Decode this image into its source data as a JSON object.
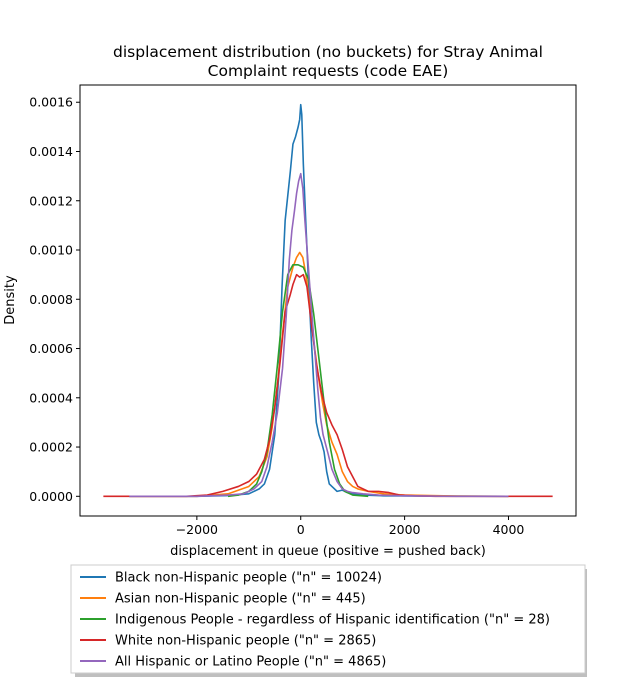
{
  "chart_data": {
    "type": "line",
    "title_lines": [
      "displacement distribution (no buckets)  for Stray Animal",
      "Complaint requests (code EAE)"
    ],
    "xlabel": "displacement in queue (positive = pushed back)",
    "ylabel": "Density",
    "xlim": [
      -4250,
      5300
    ],
    "ylim": [
      -8e-05,
      0.00167
    ],
    "xticks": [
      -2000,
      0,
      2000,
      4000
    ],
    "xtick_labels": [
      "−2000",
      "0",
      "2000",
      "4000"
    ],
    "yticks": [
      0.0,
      0.0002,
      0.0004,
      0.0006,
      0.0008,
      0.001,
      0.0012,
      0.0014,
      0.0016
    ],
    "ytick_labels": [
      "0.0000",
      "0.0002",
      "0.0004",
      "0.0006",
      "0.0008",
      "0.0010",
      "0.0012",
      "0.0014",
      "0.0016"
    ],
    "grid": false,
    "legend_position": "below plot",
    "series": [
      {
        "name": "Black non-Hispanic people (\"n\" = 10024)",
        "color": "#1f77b4",
        "points": [
          [
            -3300,
            0
          ],
          [
            -2000,
            0
          ],
          [
            -1400,
            3e-06
          ],
          [
            -1000,
            1e-05
          ],
          [
            -800,
            3e-05
          ],
          [
            -700,
            5e-05
          ],
          [
            -600,
            0.00011
          ],
          [
            -500,
            0.00025
          ],
          [
            -420,
            0.0005
          ],
          [
            -360,
            0.00085
          ],
          [
            -300,
            0.00112
          ],
          [
            -250,
            0.00122
          ],
          [
            -200,
            0.00132
          ],
          [
            -150,
            0.00143
          ],
          [
            -100,
            0.00146
          ],
          [
            -50,
            0.0015
          ],
          [
            -20,
            0.00153
          ],
          [
            0,
            0.00159
          ],
          [
            20,
            0.00155
          ],
          [
            50,
            0.00135
          ],
          [
            100,
            0.0011
          ],
          [
            150,
            0.00087
          ],
          [
            200,
            0.00065
          ],
          [
            250,
            0.00046
          ],
          [
            300,
            0.0003
          ],
          [
            350,
            0.00025
          ],
          [
            400,
            0.00022
          ],
          [
            450,
            0.00018
          ],
          [
            500,
            0.0001
          ],
          [
            550,
            5e-05
          ],
          [
            600,
            4e-05
          ],
          [
            700,
            2e-05
          ],
          [
            800,
            2.5e-05
          ],
          [
            900,
            1.5e-05
          ],
          [
            1000,
            1e-05
          ],
          [
            1200,
            5e-06
          ],
          [
            1600,
            2e-06
          ],
          [
            2500,
            1e-06
          ],
          [
            4000,
            0
          ]
        ]
      },
      {
        "name": "Asian non-Hispanic people (\"n\" = 445)",
        "color": "#ff7f0e",
        "points": [
          [
            -3300,
            0
          ],
          [
            -2000,
            0
          ],
          [
            -1400,
            1e-05
          ],
          [
            -1000,
            4e-05
          ],
          [
            -800,
            8e-05
          ],
          [
            -650,
            0.00016
          ],
          [
            -550,
            0.00028
          ],
          [
            -450,
            0.00045
          ],
          [
            -350,
            0.00066
          ],
          [
            -250,
            0.00085
          ],
          [
            -150,
            0.00093
          ],
          [
            -80,
            0.00097
          ],
          [
            -20,
            0.00099
          ],
          [
            40,
            0.00097
          ],
          [
            100,
            0.0009
          ],
          [
            170,
            0.00078
          ],
          [
            250,
            0.00063
          ],
          [
            330,
            0.0005
          ],
          [
            420,
            0.00038
          ],
          [
            500,
            0.00029
          ],
          [
            600,
            0.00022
          ],
          [
            700,
            0.00017
          ],
          [
            800,
            0.0001
          ],
          [
            900,
            6e-05
          ],
          [
            1000,
            4e-05
          ],
          [
            1100,
            3e-05
          ],
          [
            1300,
            2e-05
          ],
          [
            1600,
            1e-05
          ],
          [
            2000,
            5e-06
          ],
          [
            3000,
            1e-06
          ],
          [
            4000,
            0
          ]
        ]
      },
      {
        "name": "Indigenous People - regardless of Hispanic identification (\"n\" = 28)",
        "color": "#2ca02c",
        "points": [
          [
            -1400,
            0
          ],
          [
            -1200,
            5e-06
          ],
          [
            -1000,
            2e-05
          ],
          [
            -850,
            5e-05
          ],
          [
            -750,
            0.0001
          ],
          [
            -650,
            0.00018
          ],
          [
            -550,
            0.00033
          ],
          [
            -450,
            0.00053
          ],
          [
            -350,
            0.00075
          ],
          [
            -250,
            0.0009
          ],
          [
            -150,
            0.00094
          ],
          [
            -50,
            0.00094
          ],
          [
            50,
            0.00093
          ],
          [
            150,
            0.00088
          ],
          [
            250,
            0.00074
          ],
          [
            350,
            0.00056
          ],
          [
            450,
            0.00038
          ],
          [
            550,
            0.00022
          ],
          [
            650,
            0.00011
          ],
          [
            750,
            5e-05
          ],
          [
            850,
            2e-05
          ],
          [
            1000,
            5e-06
          ],
          [
            1300,
            0
          ]
        ]
      },
      {
        "name": "White non-Hispanic people (\"n\" = 2865)",
        "color": "#d62728",
        "points": [
          [
            -3800,
            0
          ],
          [
            -3000,
            0
          ],
          [
            -2200,
            0
          ],
          [
            -1800,
            5e-06
          ],
          [
            -1500,
            2e-05
          ],
          [
            -1200,
            4e-05
          ],
          [
            -1000,
            6e-05
          ],
          [
            -850,
            9e-05
          ],
          [
            -700,
            0.00015
          ],
          [
            -600,
            0.00023
          ],
          [
            -500,
            0.00036
          ],
          [
            -400,
            0.00054
          ],
          [
            -300,
            0.00075
          ],
          [
            -200,
            0.00082
          ],
          [
            -150,
            0.00086
          ],
          [
            -80,
            0.0009
          ],
          [
            -20,
            0.00089
          ],
          [
            50,
            0.0009
          ],
          [
            120,
            0.00085
          ],
          [
            200,
            0.00071
          ],
          [
            300,
            0.00054
          ],
          [
            400,
            0.00042
          ],
          [
            500,
            0.00034
          ],
          [
            600,
            0.00029
          ],
          [
            700,
            0.00025
          ],
          [
            800,
            0.00019
          ],
          [
            900,
            0.00012
          ],
          [
            1000,
            8e-05
          ],
          [
            1100,
            4e-05
          ],
          [
            1300,
            2e-05
          ],
          [
            1500,
            2e-05
          ],
          [
            1700,
            1.5e-05
          ],
          [
            1900,
            5e-06
          ],
          [
            2200,
            2e-06
          ],
          [
            2600,
            0
          ],
          [
            3500,
            0
          ],
          [
            4850,
            0
          ]
        ]
      },
      {
        "name": "All Hispanic or Latino People (\"n\" = 4865)",
        "color": "#9467bd",
        "points": [
          [
            -3300,
            0
          ],
          [
            -2000,
            0
          ],
          [
            -1400,
            5e-06
          ],
          [
            -1100,
            1e-05
          ],
          [
            -900,
            3e-05
          ],
          [
            -750,
            6e-05
          ],
          [
            -650,
            0.00012
          ],
          [
            -550,
            0.00022
          ],
          [
            -450,
            0.00034
          ],
          [
            -350,
            0.00052
          ],
          [
            -280,
            0.00073
          ],
          [
            -220,
            0.00096
          ],
          [
            -170,
            0.00108
          ],
          [
            -120,
            0.00116
          ],
          [
            -80,
            0.00123
          ],
          [
            -40,
            0.00128
          ],
          [
            0,
            0.00131
          ],
          [
            40,
            0.00125
          ],
          [
            80,
            0.00112
          ],
          [
            130,
            0.00098
          ],
          [
            200,
            0.00078
          ],
          [
            270,
            0.00059
          ],
          [
            330,
            0.00043
          ],
          [
            380,
            0.00032
          ],
          [
            430,
            0.00025
          ],
          [
            480,
            0.00021
          ],
          [
            530,
            0.00017
          ],
          [
            600,
            0.00011
          ],
          [
            700,
            6e-05
          ],
          [
            800,
            3e-05
          ],
          [
            900,
            2e-05
          ],
          [
            1000,
            1.5e-05
          ],
          [
            1200,
            1e-05
          ],
          [
            1500,
            5e-06
          ],
          [
            2000,
            2e-06
          ],
          [
            3000,
            0
          ],
          [
            4000,
            0
          ]
        ]
      }
    ]
  }
}
